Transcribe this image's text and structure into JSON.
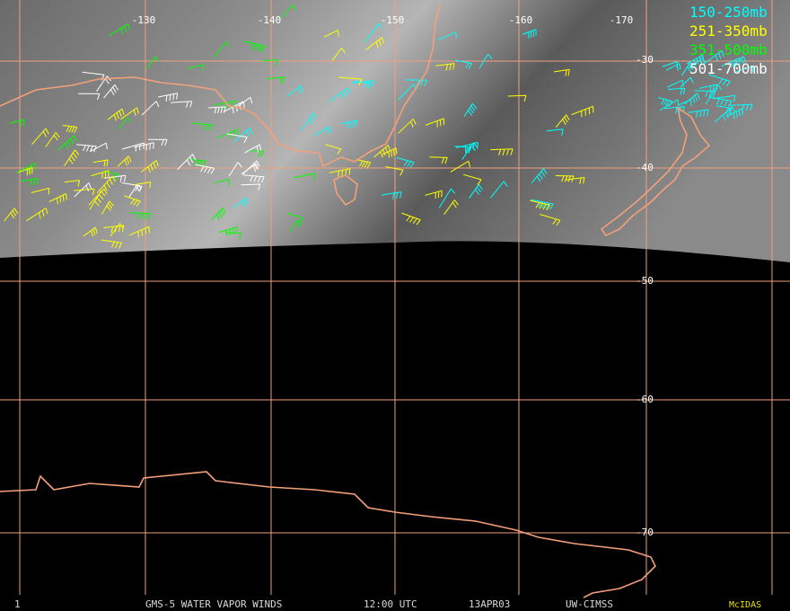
{
  "map": {
    "longitude_labels": [
      "-130",
      "-140",
      "-150",
      "-160",
      "-170"
    ],
    "latitude_labels": [
      "-30",
      "-40",
      "-50",
      "-60",
      "-70"
    ],
    "legend": [
      {
        "name": "150-250mb",
        "color": "#00ffff"
      },
      {
        "name": "251-350mb",
        "color": "#ffff00"
      },
      {
        "name": "351-500mb",
        "color": "#00ff00"
      },
      {
        "name": "501-700mb",
        "color": "#ffffff"
      }
    ],
    "footer": {
      "frame": "1",
      "title": "GMS-5 WATER VAPOR WINDS",
      "time": "12:00 UTC",
      "date": "13APR03",
      "source": "UW-CIMSS",
      "software": "McIDAS"
    }
  }
}
